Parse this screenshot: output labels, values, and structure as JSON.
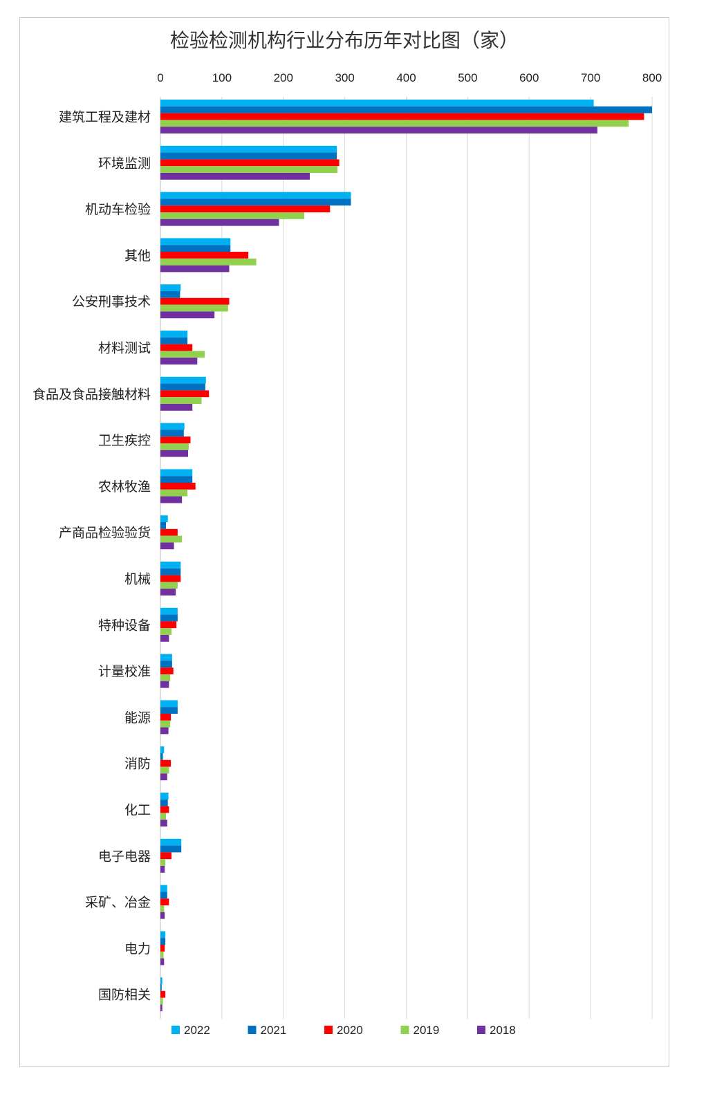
{
  "chart_data": {
    "type": "bar",
    "orientation": "horizontal",
    "title": "检验检测机构行业分布历年对比图（家）",
    "xlim": [
      0,
      800
    ],
    "xticks": [
      0,
      100,
      200,
      300,
      400,
      500,
      600,
      700,
      800
    ],
    "grid": "vertical",
    "legend_position": "bottom",
    "categories": [
      "建筑工程及建材",
      "环境监测",
      "机动车检验",
      "其他",
      "公安刑事技术",
      "材料测试",
      "食品及食品接触材料",
      "卫生疾控",
      "农林牧渔",
      "产商品检验验货",
      "机械",
      "特种设备",
      "计量校准",
      "能源",
      "消防",
      "化工",
      "电子电器",
      "采矿、冶金",
      "电力",
      "国防相关"
    ],
    "series": [
      {
        "name": "2022",
        "color": "#00B0F0",
        "values": [
          705,
          287,
          310,
          114,
          33,
          44,
          74,
          39,
          52,
          12,
          33,
          28,
          19,
          28,
          6,
          13,
          34,
          11,
          8,
          3
        ]
      },
      {
        "name": "2021",
        "color": "#0070C0",
        "values": [
          800,
          287,
          310,
          114,
          32,
          44,
          73,
          38,
          52,
          9,
          33,
          28,
          19,
          28,
          4,
          12,
          34,
          11,
          8,
          2
        ]
      },
      {
        "name": "2020",
        "color": "#FF0000",
        "values": [
          787,
          291,
          276,
          143,
          112,
          52,
          79,
          49,
          57,
          28,
          33,
          26,
          21,
          17,
          17,
          14,
          18,
          14,
          7,
          8
        ]
      },
      {
        "name": "2019",
        "color": "#92D050",
        "values": [
          762,
          288,
          234,
          156,
          110,
          72,
          67,
          46,
          44,
          35,
          28,
          18,
          16,
          16,
          14,
          9,
          8,
          6,
          5,
          4
        ]
      },
      {
        "name": "2018",
        "color": "#7030A0",
        "values": [
          711,
          243,
          193,
          112,
          88,
          60,
          52,
          45,
          35,
          22,
          25,
          14,
          14,
          13,
          11,
          11,
          7,
          7,
          6,
          3
        ]
      }
    ]
  }
}
